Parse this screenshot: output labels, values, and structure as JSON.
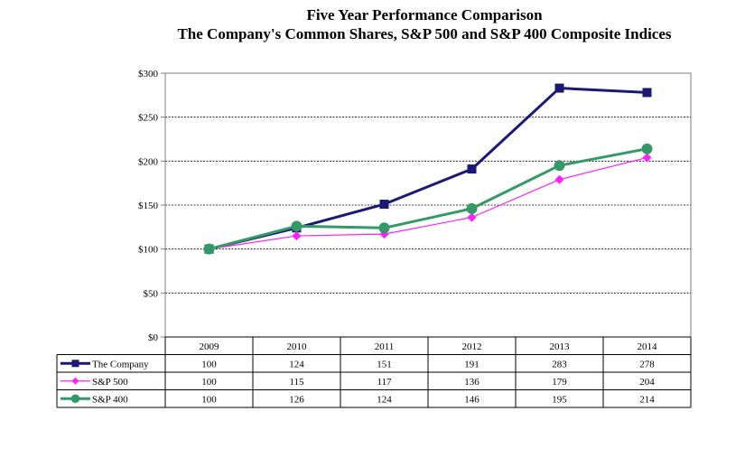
{
  "chart_data": {
    "type": "line",
    "title": "Five Year Performance  Comparison",
    "subtitle": "The Company's Common Shares, S&P 500 and S&P 400 Composite Indices",
    "categories": [
      "2009",
      "2010",
      "2011",
      "2012",
      "2013",
      "2014"
    ],
    "ylim": [
      0,
      300
    ],
    "yticks": [
      0,
      50,
      100,
      150,
      200,
      250,
      300
    ],
    "ytick_labels": [
      "$0",
      "$50",
      "$100",
      "$150",
      "$200",
      "$250",
      "$300"
    ],
    "grid": "horizontal dashed",
    "legend": "data table below chart",
    "series": [
      {
        "name": "The Company",
        "values": [
          100,
          124,
          151,
          191,
          283,
          278
        ],
        "color": "#1a1a75",
        "marker": "square"
      },
      {
        "name": "S&P 500",
        "values": [
          100,
          115,
          117,
          136,
          179,
          204
        ],
        "color": "#ff1fff",
        "marker": "diamond"
      },
      {
        "name": "S&P 400",
        "values": [
          100,
          126,
          124,
          146,
          195,
          214
        ],
        "color": "#339966",
        "marker": "circle"
      }
    ]
  }
}
